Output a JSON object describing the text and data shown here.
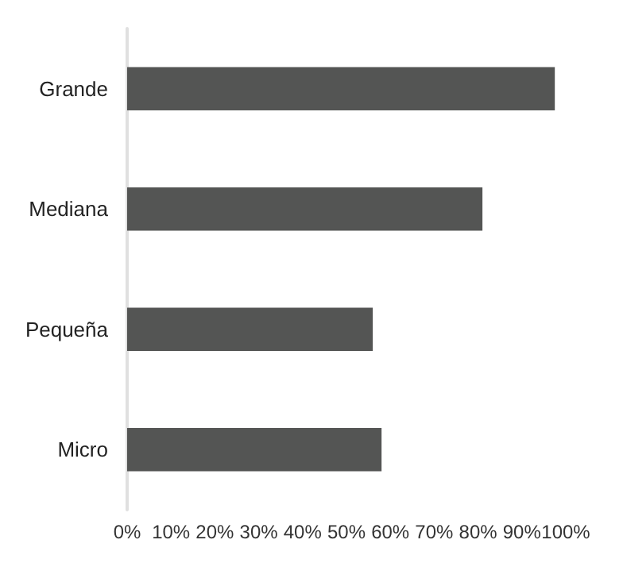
{
  "chart_data": {
    "type": "bar",
    "orientation": "horizontal",
    "categories": [
      "Grande",
      "Mediana",
      "Pequeña",
      "Micro"
    ],
    "values": [
      97.5,
      81,
      56,
      58
    ],
    "color": "#545554",
    "xlim": [
      0,
      100
    ],
    "xticks": [
      {
        "value": 0,
        "label": "0%"
      },
      {
        "value": 10,
        "label": "10%"
      },
      {
        "value": 20,
        "label": "20%"
      },
      {
        "value": 30,
        "label": "30%"
      },
      {
        "value": 40,
        "label": "40%"
      },
      {
        "value": 50,
        "label": "50%"
      },
      {
        "value": 60,
        "label": "60%"
      },
      {
        "value": 70,
        "label": "70%"
      },
      {
        "value": 80,
        "label": "80%"
      },
      {
        "value": 90,
        "label": "90%"
      },
      {
        "value": 100,
        "label": "100%"
      }
    ],
    "grid": false
  }
}
